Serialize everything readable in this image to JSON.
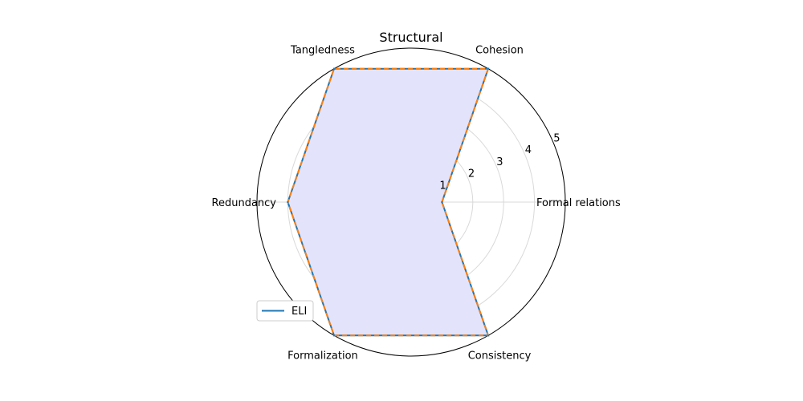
{
  "chart_data": {
    "type": "radar",
    "title": "Structural",
    "categories": [
      "Formal relations",
      "Cohesion",
      "Tangledness",
      "Redundancy",
      "Formalization",
      "Consistency"
    ],
    "r_ticks": [
      1,
      2,
      3,
      4,
      5
    ],
    "rlim": [
      0,
      5
    ],
    "grid": true,
    "legend_position": "lower-left",
    "series": [
      {
        "name": "ELI",
        "values": [
          1,
          5,
          5,
          4,
          5,
          5
        ],
        "line_color": "#1f77b4",
        "overlay_dash_color": "#ff7f0e",
        "fill_color": "#e3e3fc"
      }
    ],
    "legend": [
      {
        "label": "ELI",
        "color": "#1f77b4"
      }
    ]
  }
}
